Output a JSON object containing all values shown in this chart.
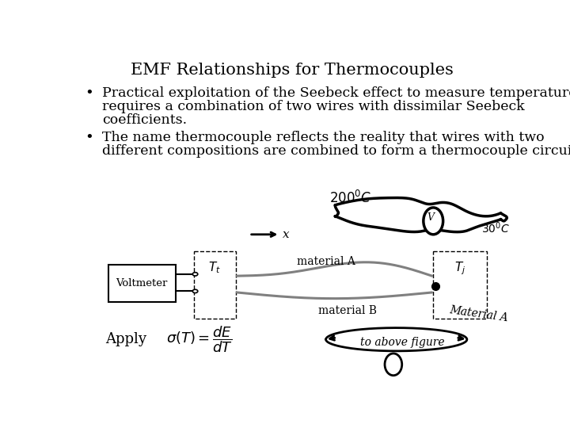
{
  "title": "EMF Relationships for Thermocouples",
  "bullet1_line1": "Practical exploitation of the Seebeck effect to measure temperature",
  "bullet1_line2": "requires a combination of two wires with dissimilar Seebeck",
  "bullet1_line3": "coefficients.",
  "bullet2_line1": "The name thermocouple reflects the reality that wires with two",
  "bullet2_line2": "different compositions are combined to form a thermocouple circuit.",
  "label_material_A": "material A",
  "label_material_B": "material B",
  "label_voltmeter": "Voltmeter",
  "label_apply": "Apply",
  "label_x": "x",
  "label_T_t": "$T_t$",
  "label_T_j": "$T_j$",
  "bg_color": "#ffffff",
  "text_color": "#000000",
  "title_fontsize": 15,
  "body_fontsize": 12.5,
  "small_fontsize": 10
}
